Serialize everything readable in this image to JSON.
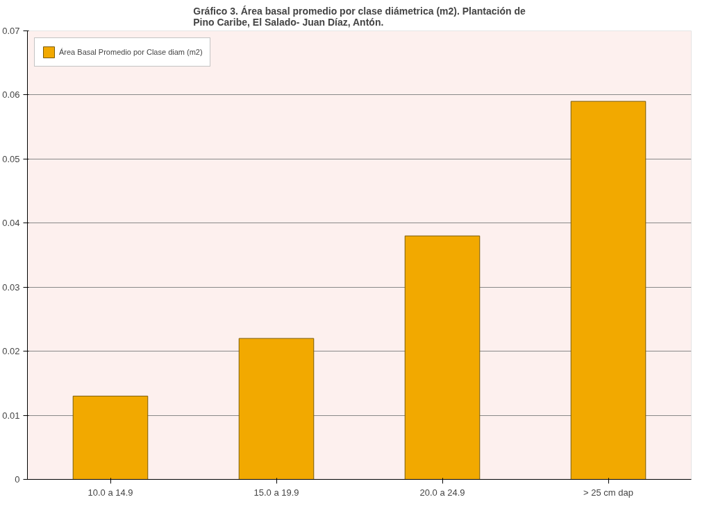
{
  "chart_data": {
    "type": "bar",
    "title": "Gráfico 3. Área basal promedio por clase diámetrica (m2). Plantación de\nPino Caribe, El Salado- Juan Díaz, Antón.",
    "categories": [
      "10.0 a 14.9",
      "15.0 a 19.9",
      "20.0 a 24.9",
      "> 25 cm dap"
    ],
    "series": [
      {
        "name": "Área Basal Promedio por Clase diam (m2)",
        "color": "#f2a900",
        "values": [
          0.013,
          0.022,
          0.038,
          0.059
        ]
      }
    ],
    "ylim": [
      0,
      0.07
    ],
    "yticks": [
      0,
      0.01,
      0.02,
      0.03,
      0.04,
      0.05,
      0.06,
      0.07
    ],
    "grid": "y",
    "legend": "top left"
  }
}
